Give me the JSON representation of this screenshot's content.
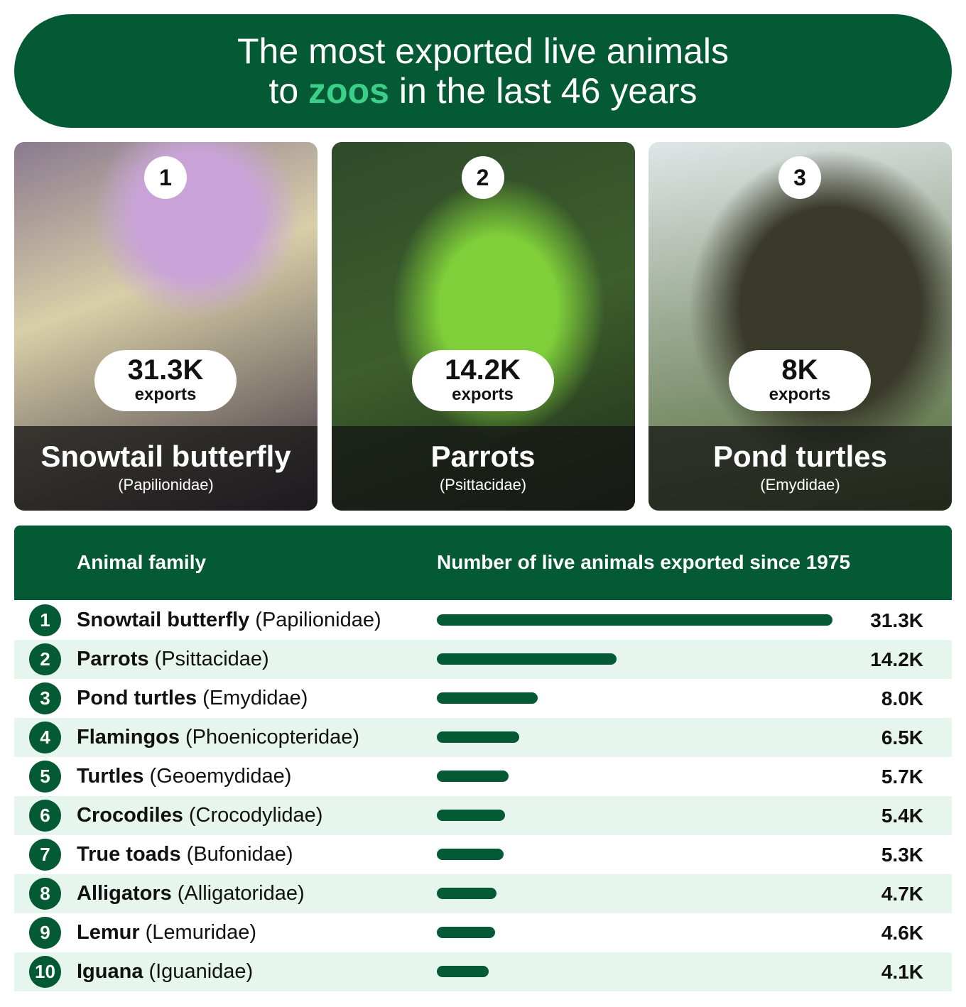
{
  "header": {
    "title_line1": "The most exported live animals",
    "title_pre": "to",
    "title_accent": "zoos",
    "title_post": "in the last 46 years"
  },
  "cards": [
    {
      "rank": 1,
      "value_label": "31.3K",
      "unit": "exports",
      "name": "Snowtail butterfly",
      "family": "(Papilionidae)"
    },
    {
      "rank": 2,
      "value_label": "14.2K",
      "unit": "exports",
      "name": "Parrots",
      "family": "(Psittacidae)"
    },
    {
      "rank": 3,
      "value_label": "8K",
      "unit": "exports",
      "name": "Pond turtles",
      "family": "(Emydidae)"
    }
  ],
  "table": {
    "columns": [
      "Animal family",
      "Number of live animals exported since 1975"
    ],
    "rows": [
      {
        "rank": 1,
        "name": "Snowtail butterfly",
        "family": "(Papilionidae)",
        "value": 31300,
        "value_label": "31.3K"
      },
      {
        "rank": 2,
        "name": "Parrots",
        "family": "(Psittacidae)",
        "value": 14200,
        "value_label": "14.2K"
      },
      {
        "rank": 3,
        "name": "Pond turtles",
        "family": "(Emydidae)",
        "value": 8000,
        "value_label": "8.0K"
      },
      {
        "rank": 4,
        "name": "Flamingos",
        "family": "(Phoenicopteridae)",
        "value": 6500,
        "value_label": "6.5K"
      },
      {
        "rank": 5,
        "name": "Turtles",
        "family": "(Geoemydidae)",
        "value": 5700,
        "value_label": "5.7K"
      },
      {
        "rank": 6,
        "name": "Crocodiles",
        "family": "(Crocodylidae)",
        "value": 5400,
        "value_label": "5.4K"
      },
      {
        "rank": 7,
        "name": "True toads",
        "family": "(Bufonidae)",
        "value": 5300,
        "value_label": "5.3K"
      },
      {
        "rank": 8,
        "name": "Alligators",
        "family": "(Alligatoridae)",
        "value": 4700,
        "value_label": "4.7K"
      },
      {
        "rank": 9,
        "name": "Lemur",
        "family": "(Lemuridae)",
        "value": 4600,
        "value_label": "4.6K"
      },
      {
        "rank": 10,
        "name": "Iguana",
        "family": "(Iguanidae)",
        "value": 4100,
        "value_label": "4.1K"
      }
    ]
  }
}
